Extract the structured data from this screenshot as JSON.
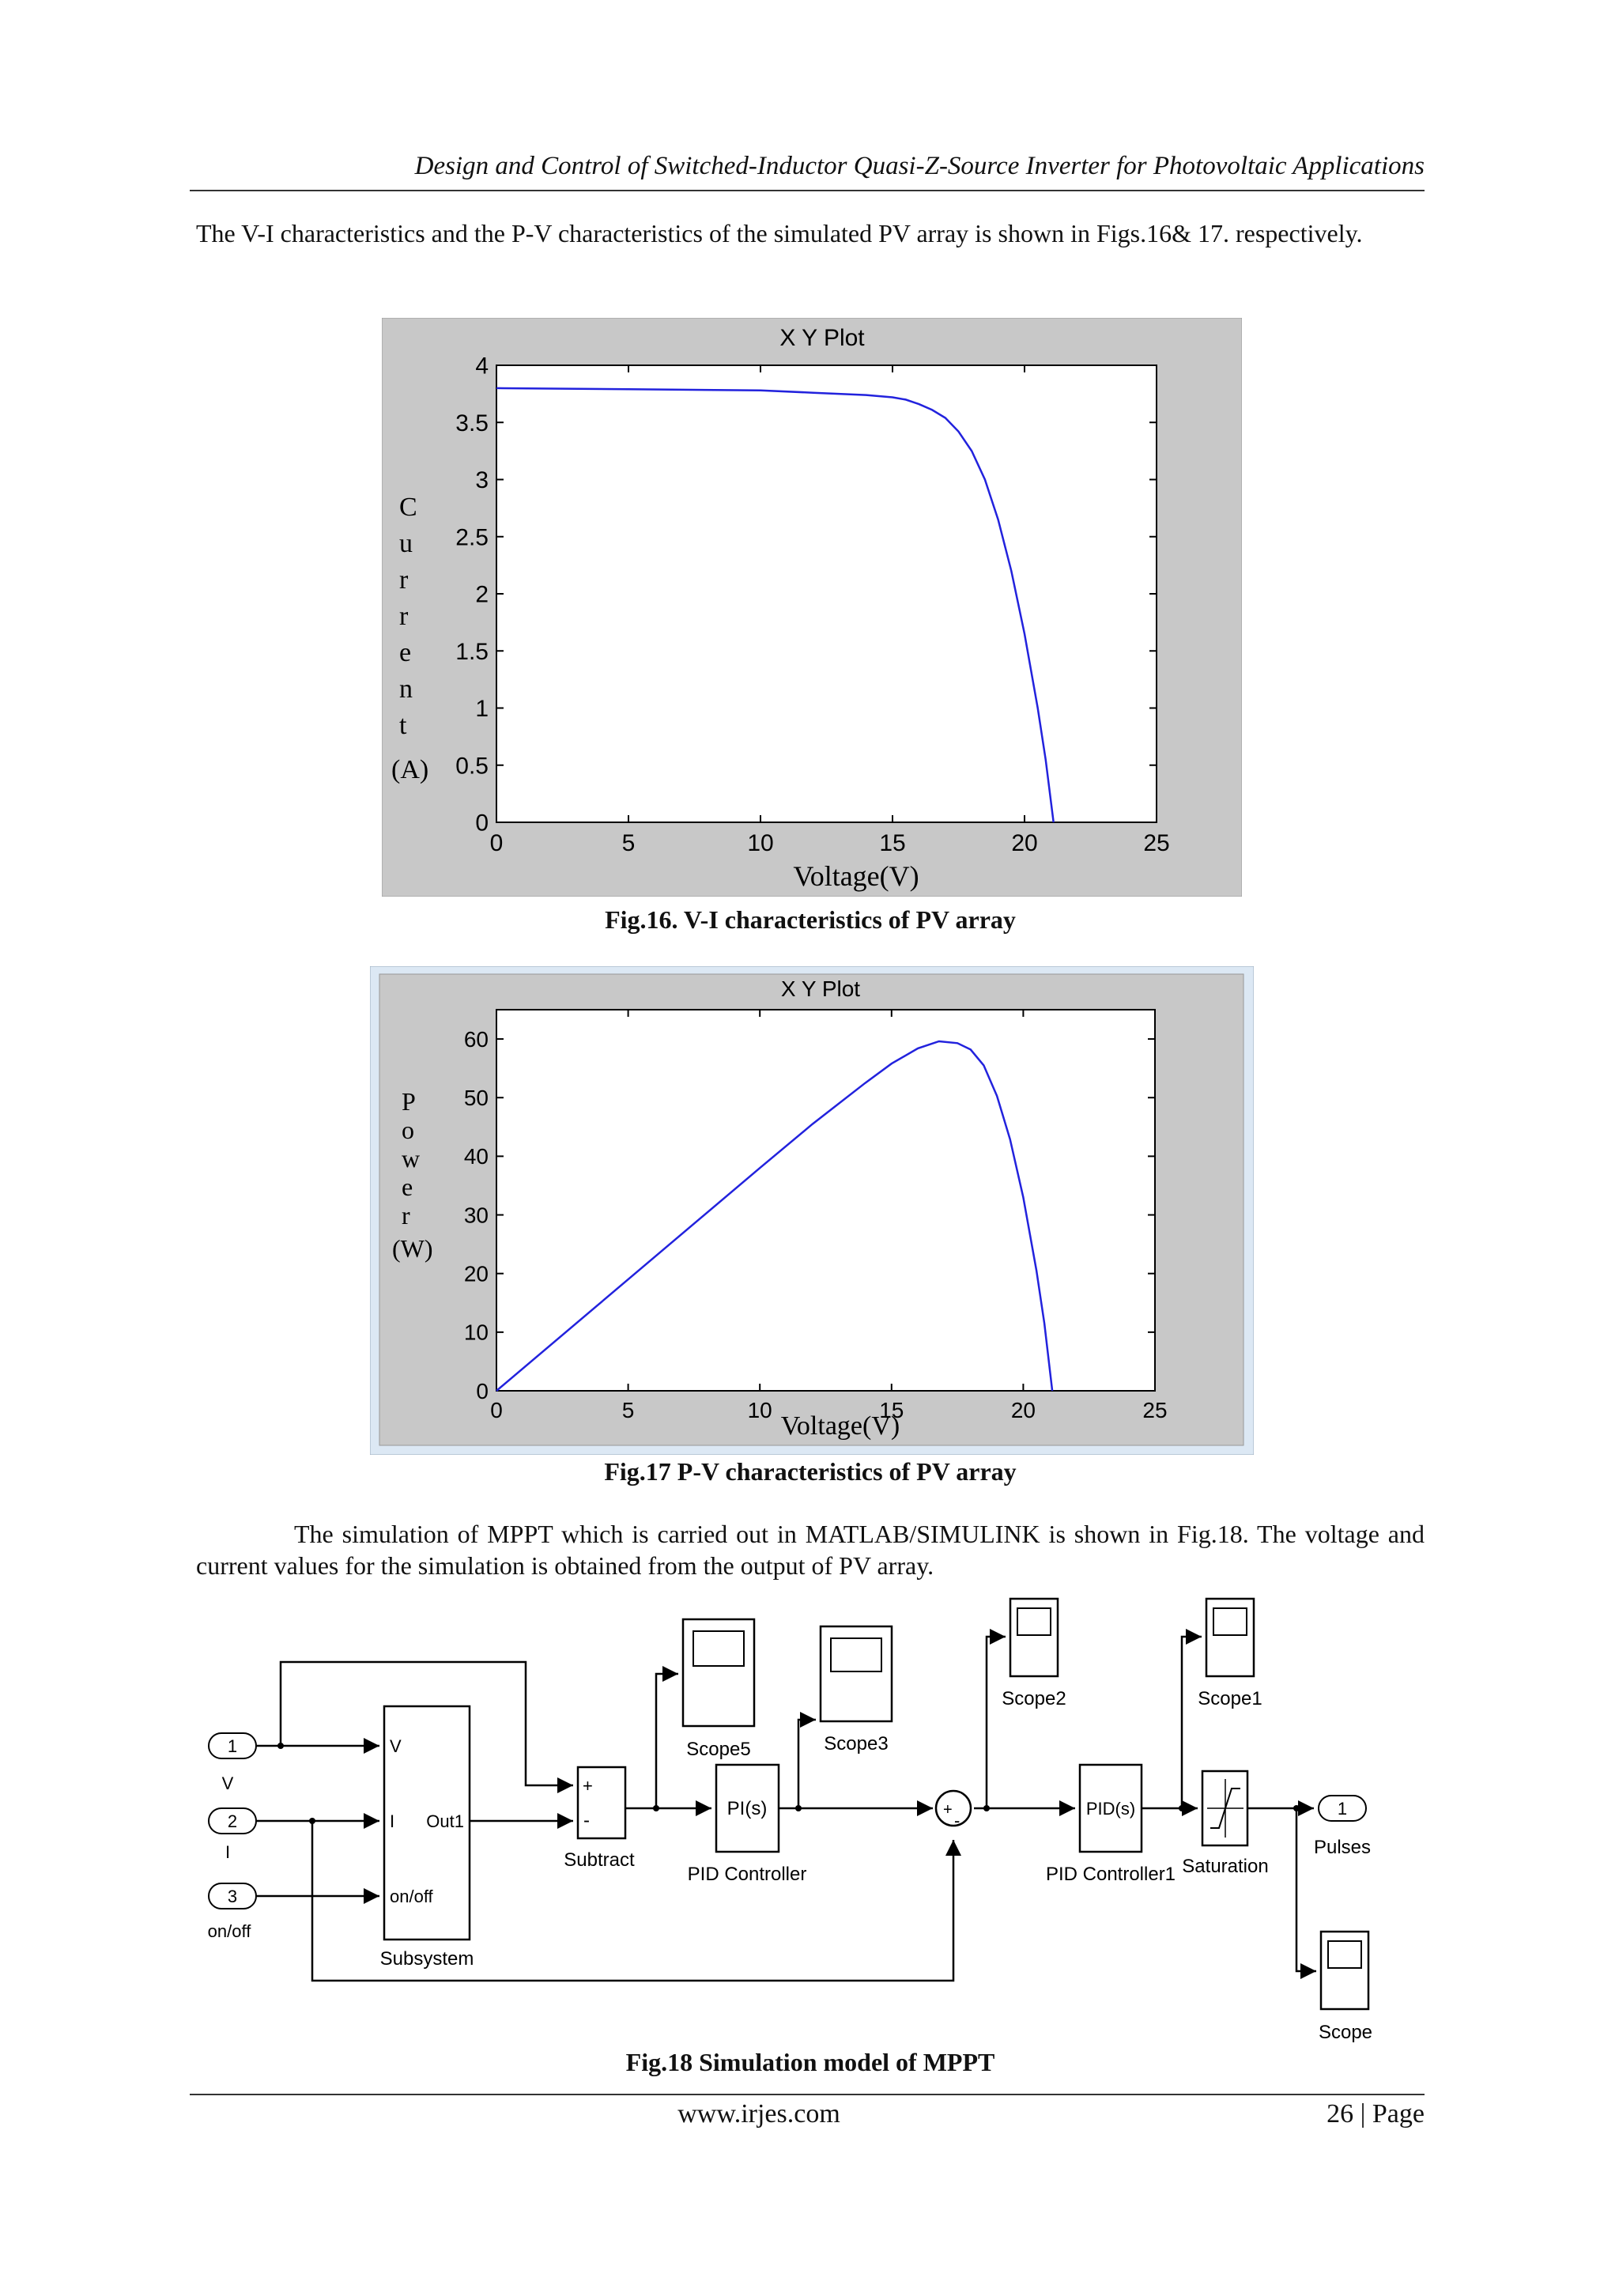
{
  "header": {
    "running_title": "Design and Control of Switched-Inductor Quasi-Z-Source Inverter for Photovoltaic Applications"
  },
  "intro_paragraph": "The V-I characteristics and the P-V characteristics of the simulated PV array is shown in Figs.16& 17. respectively.",
  "figures": {
    "fig16_caption": "Fig.16. V-I characteristics of PV array",
    "fig17_caption": "Fig.17 P-V characteristics of PV array",
    "fig18_caption": "Fig.18 Simulation model of MPPT"
  },
  "sim_paragraph": "The simulation of MPPT which is carried out in MATLAB/SIMULINK is shown in Fig.18. The voltage and current values for the simulation is obtained from the output of PV array.",
  "footer": {
    "url": "www.irjes.com",
    "page": "26 | Page"
  },
  "colors": {
    "plot_bg": "#c8c8c8",
    "axes_bg": "#ffffff",
    "series": "#2222dd"
  },
  "chart_data": [
    {
      "type": "line",
      "title": "X Y Plot",
      "xlabel": "Voltage(V)",
      "ylabel": "Current (A)",
      "ylabel_letters": [
        "C",
        "u",
        "r",
        "r",
        "e",
        "n",
        "t"
      ],
      "ylabel_unit": "(A)",
      "xlim": [
        0,
        25
      ],
      "ylim": [
        0,
        4
      ],
      "xticks": [
        0,
        5,
        10,
        15,
        20,
        25
      ],
      "yticks": [
        0,
        0.5,
        1,
        1.5,
        2,
        2.5,
        3,
        3.5,
        4
      ],
      "series": [
        {
          "x": [
            0,
            5,
            10,
            12,
            14,
            15,
            15.5,
            16,
            16.5,
            17,
            17.5,
            18,
            18.5,
            19,
            19.5,
            20,
            20.5,
            20.8,
            21.1
          ],
          "y": [
            3.8,
            3.79,
            3.78,
            3.76,
            3.74,
            3.72,
            3.7,
            3.66,
            3.61,
            3.54,
            3.42,
            3.25,
            3.0,
            2.65,
            2.2,
            1.65,
            1.0,
            0.55,
            0.0
          ]
        }
      ]
    },
    {
      "type": "line",
      "title": "X Y Plot",
      "xlabel": "Voltage(V)",
      "ylabel": "Power (W)",
      "ylabel_letters": [
        "P",
        "o",
        "w",
        "e",
        "r"
      ],
      "ylabel_unit": "(W)",
      "xlim": [
        0,
        25
      ],
      "ylim": [
        0,
        65
      ],
      "xticks": [
        0,
        5,
        10,
        15,
        20,
        25
      ],
      "yticks": [
        0,
        10,
        20,
        30,
        40,
        50,
        60
      ],
      "series": [
        {
          "x": [
            0,
            5,
            10,
            12,
            14,
            15,
            16,
            16.8,
            17.5,
            18,
            18.5,
            19,
            19.5,
            20,
            20.5,
            20.8,
            21.1
          ],
          "y": [
            0,
            19,
            38,
            45.5,
            52.5,
            55.8,
            58.4,
            59.6,
            59.3,
            58.2,
            55.5,
            50.3,
            42.9,
            33,
            20.5,
            11.5,
            0
          ]
        }
      ]
    }
  ],
  "simulink": {
    "inports": [
      {
        "num": "1",
        "label": "V"
      },
      {
        "num": "2",
        "label": "I"
      },
      {
        "num": "3",
        "label": "on/off"
      }
    ],
    "subsystem": {
      "name": "Subsystem",
      "ports_in": [
        "V",
        "I",
        "on/off"
      ],
      "port_out": "Out1"
    },
    "subtract": {
      "name": "Subtract",
      "plus": "+",
      "minus": "-"
    },
    "pid1": {
      "text": "PI(s)",
      "name": "PID Controller"
    },
    "pid2": {
      "text": "PID(s)",
      "name": "PID Controller1"
    },
    "sum_signs": {
      "plus": "+",
      "minus": "-"
    },
    "scopes": {
      "scope5": "Scope5",
      "scope3": "Scope3",
      "scope2": "Scope2",
      "scope1": "Scope1",
      "scope": "Scope"
    },
    "saturation": "Saturation",
    "outport": {
      "num": "1",
      "label": "Pulses"
    }
  }
}
